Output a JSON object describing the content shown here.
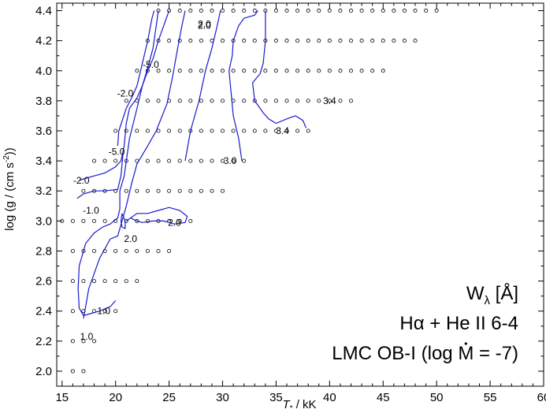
{
  "chart_data": {
    "type": "scatter",
    "title": "",
    "xlabel_main": "T",
    "xlabel_sub": "*",
    "xlabel_unit": " / kK",
    "ylabel": "log (g / (cm s",
    "ylabel_sup": "-2",
    "ylabel_end": "))",
    "xlim": [
      14.5,
      60
    ],
    "ylim": [
      1.9,
      4.45
    ],
    "x_ticks": [
      15,
      20,
      25,
      30,
      35,
      40,
      45,
      50,
      55,
      60
    ],
    "y_ticks": [
      2.0,
      2.2,
      2.4,
      2.6,
      2.8,
      3.0,
      3.2,
      3.4,
      3.6,
      3.8,
      4.0,
      4.2,
      4.4
    ],
    "grid": false,
    "annotations": {
      "line1": "W",
      "line1_sub": "λ",
      "line1_rest": " [Å]",
      "line2": "Hα + He II 6-4",
      "line3_pre": "LMC OB-I (log ",
      "line3_m": "M",
      "line3_post": " = -7)"
    },
    "grid_rows": [
      {
        "logg": 2.0,
        "tmin": 16,
        "tmax": 17
      },
      {
        "logg": 2.2,
        "tmin": 16,
        "tmax": 18
      },
      {
        "logg": 2.4,
        "tmin": 16,
        "tmax": 20
      },
      {
        "logg": 2.6,
        "tmin": 16,
        "tmax": 22
      },
      {
        "logg": 2.8,
        "tmin": 16,
        "tmax": 25
      },
      {
        "logg": 3.0,
        "tmin": 15,
        "tmax": 27
      },
      {
        "logg": 3.2,
        "tmin": 17,
        "tmax": 30
      },
      {
        "logg": 3.4,
        "tmin": 18,
        "tmax": 32
      },
      {
        "logg": 3.6,
        "tmin": 20,
        "tmax": 38
      },
      {
        "logg": 3.8,
        "tmin": 21,
        "tmax": 42
      },
      {
        "logg": 4.0,
        "tmin": 22,
        "tmax": 45
      },
      {
        "logg": 4.2,
        "tmin": 23,
        "tmax": 48
      },
      {
        "logg": 4.4,
        "tmin": 24,
        "tmax": 50
      }
    ],
    "contours": [
      {
        "level": "1.0",
        "points": [
          [
            20,
            2.47
          ],
          [
            19.5,
            2.43
          ],
          [
            18.5,
            2.4
          ],
          [
            17.5,
            2.38
          ],
          [
            17,
            2.37
          ],
          [
            16.6,
            2.42
          ],
          [
            16.5,
            2.55
          ],
          [
            16.6,
            2.7
          ],
          [
            17.2,
            2.85
          ],
          [
            18,
            2.92
          ],
          [
            18.8,
            2.96
          ],
          [
            19.5,
            2.98
          ],
          [
            20.2,
            3.02
          ],
          [
            20.4,
            3.08
          ],
          [
            20.4,
            3.2
          ],
          [
            20.8,
            3.3
          ],
          [
            21.3,
            3.55
          ],
          [
            22,
            3.75
          ],
          [
            22.5,
            3.9
          ],
          [
            23,
            4.0
          ],
          [
            23.5,
            4.08
          ],
          [
            24,
            4.2
          ],
          [
            24.5,
            4.3
          ],
          [
            25,
            4.4
          ]
        ]
      },
      {
        "level": "-2.0",
        "points": [
          [
            16.6,
            3.27
          ],
          [
            17,
            3.28
          ],
          [
            18,
            3.3
          ],
          [
            19,
            3.32
          ],
          [
            20,
            3.36
          ],
          [
            20.5,
            3.4
          ],
          [
            20.8,
            3.5
          ],
          [
            21,
            3.65
          ],
          [
            21.3,
            3.75
          ],
          [
            22,
            3.82
          ],
          [
            22.5,
            3.9
          ],
          [
            23,
            4.02
          ],
          [
            23.5,
            4.15
          ],
          [
            23.8,
            4.3
          ],
          [
            24,
            4.4
          ]
        ]
      },
      {
        "level": "-1.0",
        "points": [
          [
            16.4,
            3.15
          ],
          [
            17,
            3.18
          ],
          [
            18,
            3.2
          ],
          [
            19,
            3.2
          ],
          [
            20.2,
            3.21
          ],
          [
            20.5,
            3.3
          ],
          [
            20.7,
            3.45
          ]
        ]
      },
      {
        "level": "-5.0",
        "points": [
          [
            20.2,
            3.5
          ],
          [
            20.3,
            3.6
          ],
          [
            21,
            3.75
          ],
          [
            21.5,
            3.82
          ],
          [
            22,
            3.9
          ],
          [
            22.5,
            4.05
          ],
          [
            23,
            4.2
          ],
          [
            23.4,
            4.35
          ],
          [
            23.6,
            4.4
          ]
        ]
      },
      {
        "level": "2.0a",
        "points": [
          [
            17,
            2.35
          ],
          [
            17.5,
            2.55
          ],
          [
            18.5,
            2.75
          ],
          [
            19.5,
            2.88
          ],
          [
            20.2,
            2.9
          ],
          [
            20.6,
            3.0
          ],
          [
            21,
            3.1
          ],
          [
            21.5,
            3.25
          ],
          [
            22,
            3.38
          ],
          [
            23,
            3.5
          ],
          [
            23.8,
            3.6
          ],
          [
            24.8,
            3.78
          ],
          [
            25.3,
            3.95
          ],
          [
            25.8,
            4.15
          ],
          [
            26.2,
            4.3
          ],
          [
            26.5,
            4.4
          ]
        ]
      },
      {
        "level": "2.0b",
        "points": [
          [
            21,
            3.0
          ],
          [
            22,
            3.05
          ],
          [
            23,
            3.05
          ],
          [
            24,
            3.07
          ],
          [
            25,
            3.09
          ],
          [
            26,
            3.07
          ],
          [
            26.7,
            3.03
          ],
          [
            26.5,
            2.99
          ],
          [
            25.5,
            2.98
          ],
          [
            24.5,
            3.0
          ],
          [
            23.5,
            3.0
          ],
          [
            22.5,
            2.99
          ],
          [
            22,
            3.0
          ],
          [
            21.4,
            3.02
          ]
        ]
      },
      {
        "level": "2.0c",
        "points": [
          [
            20.6,
            3.05
          ],
          [
            20.9,
            3.0
          ],
          [
            20.9,
            2.95
          ],
          [
            20.6,
            2.96
          ],
          [
            20.5,
            3.0
          ],
          [
            20.6,
            3.05
          ]
        ]
      },
      {
        "level": "2.0d",
        "points": [
          [
            26.5,
            3.4
          ],
          [
            27,
            3.6
          ],
          [
            27.8,
            3.8
          ],
          [
            28.4,
            4.0
          ],
          [
            29,
            4.15
          ],
          [
            29.5,
            4.3
          ],
          [
            29.8,
            4.4
          ]
        ]
      },
      {
        "level": "3.0",
        "points": [
          [
            31.8,
            3.4
          ],
          [
            31.5,
            3.55
          ],
          [
            31,
            3.7
          ],
          [
            30.8,
            3.85
          ],
          [
            30.6,
            4.0
          ],
          [
            30.9,
            4.1
          ],
          [
            31,
            4.2
          ],
          [
            31.5,
            4.3
          ],
          [
            32,
            4.35
          ],
          [
            33,
            4.37
          ],
          [
            33.3,
            4.4
          ]
        ]
      },
      {
        "level": "3.4",
        "points": [
          [
            34,
            4.4
          ],
          [
            34,
            4.2
          ],
          [
            33.8,
            4.05
          ],
          [
            33.5,
            3.98
          ],
          [
            32.8,
            3.92
          ],
          [
            33,
            3.8
          ],
          [
            33.8,
            3.72
          ],
          [
            34.3,
            3.68
          ],
          [
            35,
            3.65
          ],
          [
            36,
            3.68
          ],
          [
            36.8,
            3.7
          ],
          [
            37.5,
            3.67
          ],
          [
            37.8,
            3.62
          ]
        ]
      }
    ],
    "contour_labels": [
      {
        "text": "1.0",
        "x": 17.3,
        "y": 2.23
      },
      {
        "text": "1.0",
        "x": 18.9,
        "y": 2.4
      },
      {
        "text": "2.0",
        "x": 21.4,
        "y": 2.88
      },
      {
        "text": "2.0",
        "x": 25.5,
        "y": 2.99
      },
      {
        "text": "-1.0",
        "x": 17.7,
        "y": 3.07
      },
      {
        "text": "-2.0",
        "x": 16.8,
        "y": 3.27
      },
      {
        "text": "-5.0",
        "x": 20.1,
        "y": 3.46
      },
      {
        "text": "-2.0",
        "x": 20.9,
        "y": 3.85
      },
      {
        "text": "-5.0",
        "x": 23.3,
        "y": 4.04
      },
      {
        "text": "2.0",
        "x": 28.3,
        "y": 4.31
      },
      {
        "text": "2.0",
        "x": 28.3,
        "y": 4.3
      },
      {
        "text": "3.0",
        "x": 30.7,
        "y": 3.4
      },
      {
        "text": "3.4",
        "x": 35.6,
        "y": 3.6
      },
      {
        "text": "3.4",
        "x": 40.0,
        "y": 3.8
      }
    ]
  }
}
